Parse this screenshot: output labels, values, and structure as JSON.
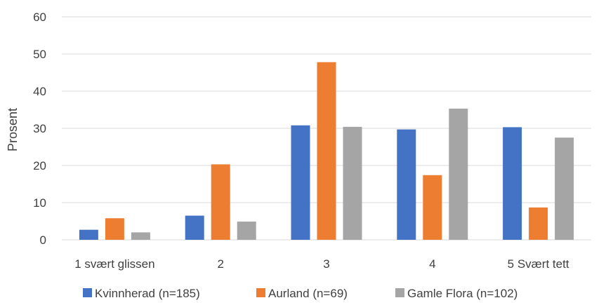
{
  "chart_data": {
    "type": "bar",
    "categories": [
      "1 svært glissen",
      "2",
      "3",
      "4",
      "5 Svært tett"
    ],
    "series": [
      {
        "name": "Kvinnherad (n=185)",
        "color": "#4472c4",
        "values": [
          2.7,
          6.5,
          30.8,
          29.7,
          30.3
        ]
      },
      {
        "name": "Aurland (n=69)",
        "color": "#ed7d31",
        "values": [
          5.8,
          20.3,
          47.8,
          17.4,
          8.7
        ]
      },
      {
        "name": "Gamle Flora (n=102)",
        "color": "#a5a5a5",
        "values": [
          2.0,
          4.9,
          30.4,
          35.3,
          27.5
        ]
      }
    ],
    "ylabel": "Prosent",
    "ylim": [
      0,
      60
    ],
    "yticks": [
      0,
      10,
      20,
      30,
      40,
      50,
      60
    ],
    "grid": true,
    "legend_position": "bottom"
  }
}
